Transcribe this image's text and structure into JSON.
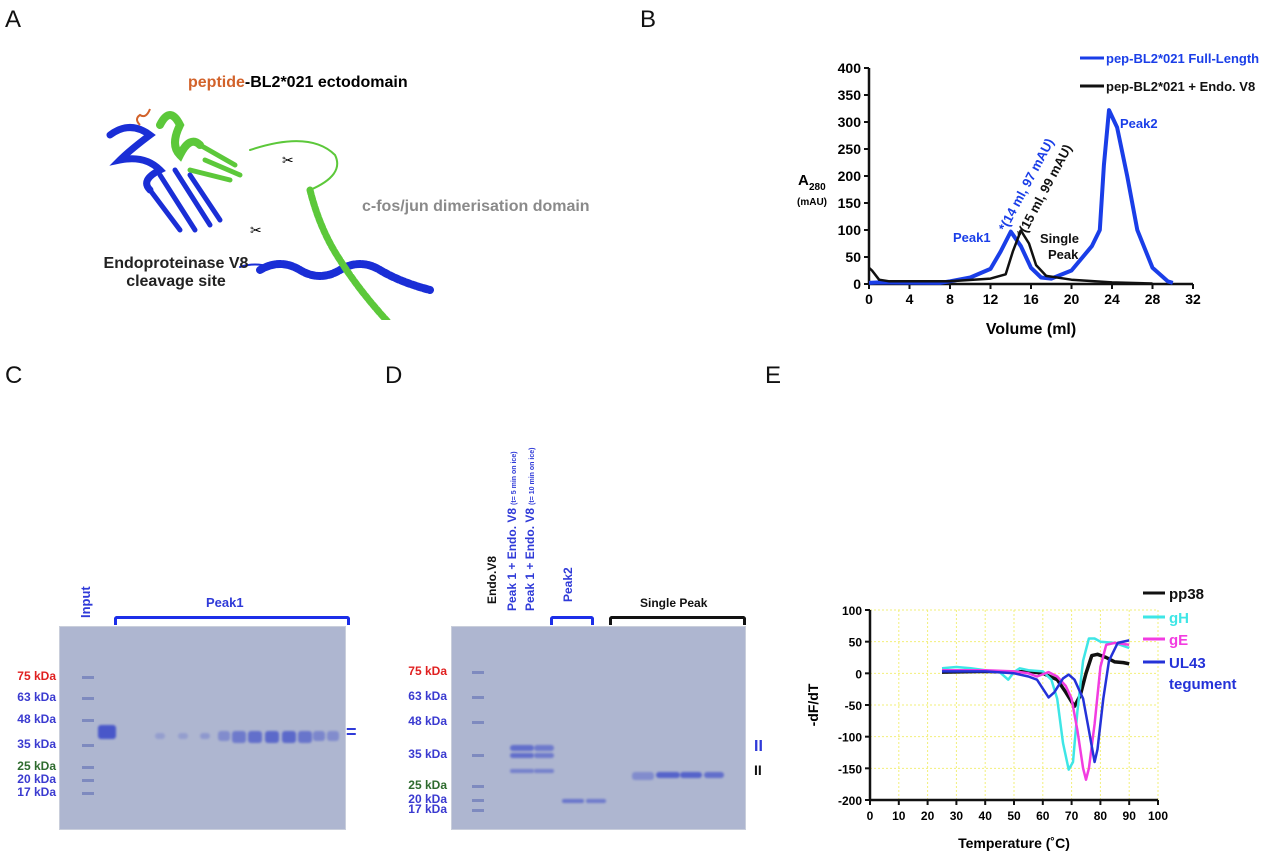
{
  "panels": {
    "a": "A",
    "b": "B",
    "c": "C",
    "d": "D",
    "e": "E"
  },
  "panel_a": {
    "title_peptide": "peptide",
    "title_rest": "-BL2*021 ectodomain",
    "dimerisation_label": "c-fos/jun dimerisation domain",
    "cleavage_line1": "Endoproteinase V8",
    "cleavage_line2": "cleavage site",
    "colors": {
      "peptide": "#d2622a",
      "chain1": "#1a2ed6",
      "chain2": "#5cc83a"
    }
  },
  "panel_c": {
    "markers": [
      {
        "label": "75 kDa",
        "color": "#e02020"
      },
      {
        "label": "63 kDa",
        "color": "#3a3ad0"
      },
      {
        "label": "48 kDa",
        "color": "#3a3ad0"
      },
      {
        "label": "35 kDa",
        "color": "#3a3ad0"
      },
      {
        "label": "25 kDa",
        "color": "#2e6b2e"
      },
      {
        "label": "20 kDa",
        "color": "#3a3ad0"
      },
      {
        "label": "17 kDa",
        "color": "#3a3ad0"
      }
    ],
    "input_label": "Input",
    "peak1_label": "Peak1",
    "mark": "="
  },
  "panel_d": {
    "markers": [
      {
        "label": "75 kDa",
        "color": "#e02020"
      },
      {
        "label": "63 kDa",
        "color": "#3a3ad0"
      },
      {
        "label": "48 kDa",
        "color": "#3a3ad0"
      },
      {
        "label": "35 kDa",
        "color": "#3a3ad0"
      },
      {
        "label": "25 kDa",
        "color": "#2e6b2e"
      },
      {
        "label": "20 kDa",
        "color": "#3a3ad0"
      },
      {
        "label": "17 kDa",
        "color": "#3a3ad0"
      }
    ],
    "endo_label": "Endo.V8",
    "lane1_main": "Peak 1 + Endo. V8",
    "lane1_note": "(t= 5 min on ice)",
    "lane2_main": "Peak 1 + Endo. V8",
    "lane2_note": "(t= 10 min on ice)",
    "peak2_label": "Peak2",
    "single_peak_label": "Single Peak",
    "mark_blue": "II",
    "mark_black": "II"
  },
  "chart_data": [
    {
      "type": "line",
      "panel": "B",
      "xlabel": "Volume (ml)",
      "ylabel": "A",
      "ylabel_sub": "280",
      "ylabel_unit": "(mAU)",
      "xlim": [
        0,
        32
      ],
      "ylim": [
        0,
        400
      ],
      "xticks": [
        0,
        4,
        8,
        12,
        16,
        20,
        24,
        28,
        32
      ],
      "yticks": [
        0,
        50,
        100,
        150,
        200,
        250,
        300,
        350,
        400
      ],
      "grid": false,
      "legend_position": "top-right",
      "series": [
        {
          "name": "pep-BL2*021 Full-Length",
          "color": "#1a3ee8",
          "x": [
            0,
            1,
            7,
            8,
            10,
            12,
            13,
            14,
            15,
            16,
            17,
            18,
            20,
            22,
            22.8,
            23.2,
            23.7,
            24.5,
            25.5,
            26.5,
            28,
            29.5,
            30
          ],
          "y": [
            2,
            3,
            2,
            5,
            12,
            28,
            60,
            97,
            70,
            30,
            12,
            10,
            25,
            70,
            100,
            220,
            322,
            290,
            200,
            100,
            30,
            5,
            2
          ]
        },
        {
          "name": "pep-BL2*021 + Endo. V8",
          "color": "#111111",
          "x": [
            0,
            0.3,
            1,
            2,
            8,
            12,
            13.5,
            14.2,
            15,
            15.8,
            16.5,
            17.5,
            20,
            24,
            28
          ],
          "y": [
            30,
            25,
            8,
            5,
            5,
            10,
            18,
            60,
            99,
            75,
            35,
            15,
            8,
            3,
            1
          ]
        }
      ],
      "annotations": [
        {
          "text": "Peak1",
          "color": "#1a3ee8"
        },
        {
          "text": "Peak2",
          "color": "#1a3ee8"
        },
        {
          "text": "Single",
          "color": "#111111"
        },
        {
          "text": "Peak",
          "color": "#111111"
        },
        {
          "text": "*(14 ml, 97 mAU)",
          "color": "#1a3ee8"
        },
        {
          "text": "*(15 ml, 99 mAU)",
          "color": "#111111"
        }
      ]
    },
    {
      "type": "line",
      "panel": "E",
      "xlabel": "Temperature (˚C)",
      "ylabel": "-dF/dT",
      "xlim": [
        0,
        100
      ],
      "ylim": [
        -200,
        100
      ],
      "xticks": [
        0,
        10,
        20,
        30,
        40,
        50,
        60,
        70,
        80,
        90,
        100
      ],
      "yticks": [
        100,
        50,
        0,
        -50,
        -100,
        -150,
        -200
      ],
      "grid": true,
      "grid_color": "#f2ef7a",
      "legend_position": "right",
      "series": [
        {
          "name": "pp38",
          "color": "#111111",
          "x": [
            25,
            40,
            50,
            55,
            60,
            65,
            68,
            71,
            73,
            75,
            77,
            79,
            82,
            85,
            88,
            90
          ],
          "y": [
            2,
            3,
            2,
            3,
            0,
            -10,
            -30,
            -52,
            -35,
            0,
            28,
            30,
            25,
            18,
            17,
            15
          ]
        },
        {
          "name": "gH",
          "color": "#3ee6e6",
          "x": [
            25,
            30,
            35,
            40,
            45,
            48,
            50,
            52,
            55,
            60,
            63,
            65,
            67,
            69,
            70.5,
            72,
            74,
            76,
            78,
            80,
            85,
            90
          ],
          "y": [
            8,
            10,
            8,
            5,
            2,
            -10,
            2,
            8,
            5,
            3,
            -10,
            -40,
            -110,
            -152,
            -140,
            -60,
            20,
            55,
            55,
            50,
            48,
            40
          ]
        },
        {
          "name": "gE",
          "color": "#f23ce0",
          "x": [
            25,
            40,
            50,
            55,
            58,
            62,
            65,
            68,
            70,
            72,
            74,
            75,
            76,
            78,
            80,
            82,
            85,
            90
          ],
          "y": [
            5,
            5,
            3,
            0,
            -5,
            2,
            -5,
            -20,
            -40,
            -90,
            -150,
            -168,
            -150,
            -80,
            10,
            45,
            48,
            45
          ]
        },
        {
          "name": "UL43 tegument",
          "color": "#2432d8",
          "x": [
            25,
            40,
            50,
            55,
            58,
            62,
            64,
            67,
            69,
            71,
            74,
            76,
            78,
            79,
            81,
            83,
            86,
            90
          ],
          "y": [
            3,
            3,
            0,
            -5,
            -10,
            -38,
            -30,
            -8,
            -2,
            -10,
            -40,
            -90,
            -140,
            -120,
            -40,
            20,
            48,
            52
          ]
        }
      ],
      "legend_lines": [
        "pp38",
        "gH",
        "gE",
        "UL43",
        "tegument"
      ]
    }
  ]
}
